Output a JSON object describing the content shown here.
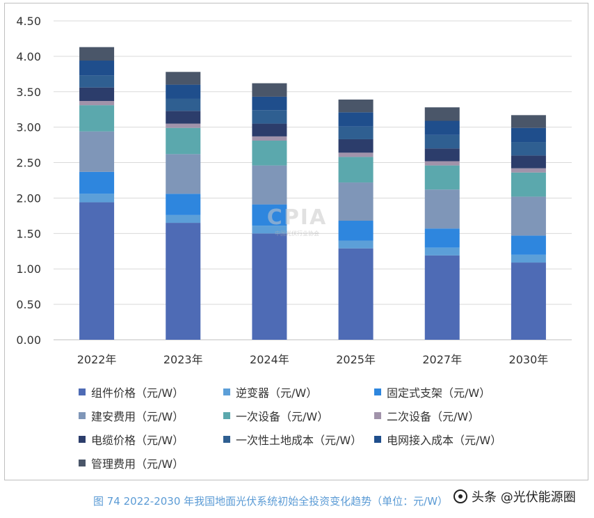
{
  "chart_data": {
    "type": "bar",
    "stacked": true,
    "categories": [
      "2022年",
      "2023年",
      "2024年",
      "2025年",
      "2027年",
      "2030年"
    ],
    "ylim": [
      0,
      4.5
    ],
    "yticks": [
      "0.00",
      "0.50",
      "1.00",
      "1.50",
      "2.00",
      "2.50",
      "3.00",
      "3.50",
      "4.00",
      "4.50"
    ],
    "grid": true,
    "legend_position": "bottom",
    "series": [
      {
        "name": "组件价格（元/W）",
        "color": "#4e6bb5",
        "values": [
          1.94,
          1.65,
          1.5,
          1.29,
          1.19,
          1.09
        ]
      },
      {
        "name": "逆变器（元/W）",
        "color": "#5c9fd8",
        "values": [
          0.12,
          0.11,
          0.11,
          0.11,
          0.11,
          0.11
        ]
      },
      {
        "name": "固定式支架（元/W）",
        "color": "#2e86de",
        "values": [
          0.31,
          0.3,
          0.3,
          0.28,
          0.27,
          0.27
        ]
      },
      {
        "name": "建安费用（元/W）",
        "color": "#7f96b8",
        "values": [
          0.57,
          0.56,
          0.55,
          0.54,
          0.55,
          0.55
        ]
      },
      {
        "name": "一次设备（元/W）",
        "color": "#5ba8ad",
        "values": [
          0.37,
          0.37,
          0.35,
          0.36,
          0.34,
          0.34
        ]
      },
      {
        "name": "二次设备（元/W）",
        "color": "#a193aa",
        "values": [
          0.06,
          0.06,
          0.06,
          0.06,
          0.06,
          0.06
        ]
      },
      {
        "name": "电缆价格（元/W）",
        "color": "#2c3d6b",
        "values": [
          0.19,
          0.18,
          0.18,
          0.19,
          0.18,
          0.18
        ]
      },
      {
        "name": "一次性土地成本（元/W）",
        "color": "#2f5f91",
        "values": [
          0.17,
          0.17,
          0.19,
          0.18,
          0.19,
          0.19
        ]
      },
      {
        "name": "电网接入成本（元/W）",
        "color": "#1f4e8c",
        "values": [
          0.21,
          0.2,
          0.19,
          0.2,
          0.2,
          0.2
        ]
      },
      {
        "name": "管理费用（元/W）",
        "color": "#4a5669",
        "values": [
          0.19,
          0.18,
          0.19,
          0.18,
          0.19,
          0.18
        ]
      }
    ]
  },
  "caption": "图 74   2022-2030 年我国地面光伏系统初始全投资变化趋势（单位：元/W）",
  "watermark": {
    "logo": "CPIA",
    "text": "中国光伏行业协会"
  },
  "source_badge": "头条 @光伏能源圈"
}
